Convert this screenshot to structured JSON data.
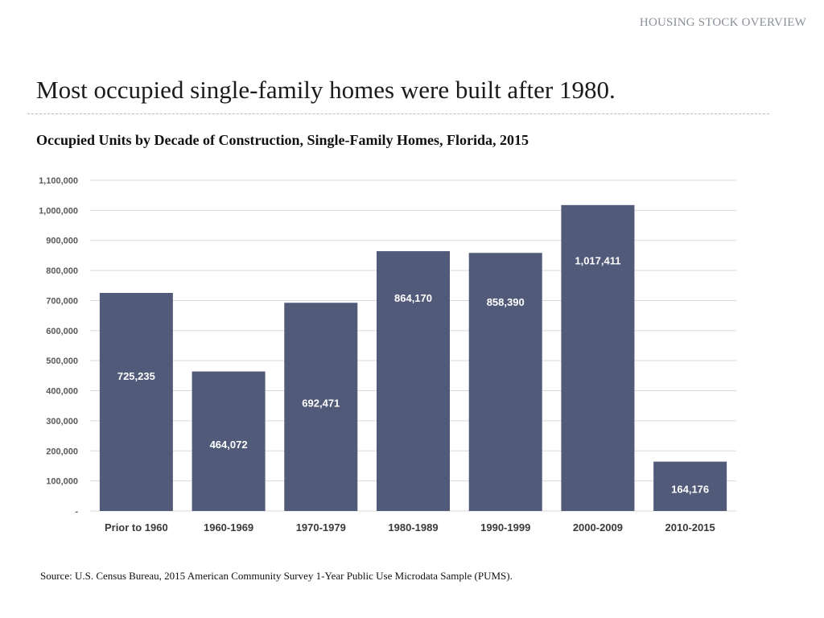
{
  "header": {
    "section_label": "HOUSING STOCK OVERVIEW",
    "slide_title": "Most occupied single-family homes were built after 1980."
  },
  "colors": {
    "bar": "#525a7a",
    "grid": "#d9d9d9",
    "axis_text": "#3a3a3a",
    "tick_text": "#595959",
    "bar_label": "#ffffff"
  },
  "chart_data": {
    "type": "bar",
    "title": "Occupied Units by Decade of Construction, Single-Family Homes, Florida, 2015",
    "xlabel": "",
    "ylabel": "",
    "categories": [
      "Prior to 1960",
      "1960-1969",
      "1970-1979",
      "1980-1989",
      "1990-1999",
      "2000-2009",
      "2010-2015"
    ],
    "values": [
      725235,
      464072,
      692471,
      864170,
      858390,
      1017411,
      164176
    ],
    "value_labels": [
      "725,235",
      "464,072",
      "692,471",
      "864,170",
      "858,390",
      "1,017,411",
      "164,176"
    ],
    "ylim": [
      0,
      1100000
    ],
    "yticks": [
      0,
      100000,
      200000,
      300000,
      400000,
      500000,
      600000,
      700000,
      800000,
      900000,
      1000000,
      1100000
    ],
    "ytick_labels": [
      "-",
      "100,000",
      "200,000",
      "300,000",
      "400,000",
      "500,000",
      "600,000",
      "700,000",
      "800,000",
      "900,000",
      "1,000,000",
      "1,100,000"
    ],
    "grid": true,
    "legend": "none"
  },
  "footer": {
    "source": "Source: U.S. Census Bureau, 2015 American Community Survey 1-Year Public Use Microdata Sample (PUMS)."
  }
}
